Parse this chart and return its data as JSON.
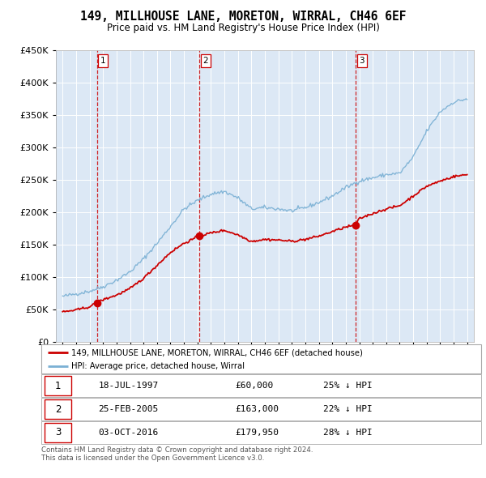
{
  "title": "149, MILLHOUSE LANE, MORETON, WIRRAL, CH46 6EF",
  "subtitle": "Price paid vs. HM Land Registry's House Price Index (HPI)",
  "legend_label_red": "149, MILLHOUSE LANE, MORETON, WIRRAL, CH46 6EF (detached house)",
  "legend_label_blue": "HPI: Average price, detached house, Wirral",
  "sales": [
    {
      "num": 1,
      "date_x": 1997.54,
      "price": 60000,
      "label": "18-JUL-1997",
      "price_str": "£60,000",
      "pct": "25% ↓ HPI"
    },
    {
      "num": 2,
      "date_x": 2005.15,
      "price": 163000,
      "label": "25-FEB-2005",
      "price_str": "£163,000",
      "pct": "22% ↓ HPI"
    },
    {
      "num": 3,
      "date_x": 2016.75,
      "price": 179950,
      "label": "03-OCT-2016",
      "price_str": "£179,950",
      "pct": "28% ↓ HPI"
    }
  ],
  "footer": "Contains HM Land Registry data © Crown copyright and database right 2024.\nThis data is licensed under the Open Government Licence v3.0.",
  "ylim": [
    0,
    450000
  ],
  "xlim": [
    1994.5,
    2025.5
  ],
  "yticks": [
    0,
    50000,
    100000,
    150000,
    200000,
    250000,
    300000,
    350000,
    400000,
    450000
  ],
  "plot_bg": "#dce8f5",
  "red_color": "#cc0000",
  "blue_color": "#7ab0d4",
  "grid_color": "#ffffff",
  "hpi_base_x": [
    1995,
    1996,
    1997,
    1998,
    1999,
    2000,
    2001,
    2002,
    2003,
    2004,
    2005,
    2006,
    2007,
    2008,
    2009,
    2010,
    2011,
    2012,
    2013,
    2014,
    2015,
    2016,
    2017,
    2018,
    2019,
    2020,
    2021,
    2022,
    2023,
    2024,
    2025
  ],
  "hpi_base_y": [
    70000,
    74000,
    78000,
    85000,
    95000,
    108000,
    128000,
    152000,
    178000,
    205000,
    218000,
    228000,
    232000,
    222000,
    205000,
    207000,
    205000,
    202000,
    207000,
    215000,
    225000,
    238000,
    248000,
    253000,
    258000,
    260000,
    285000,
    325000,
    355000,
    370000,
    375000
  ],
  "pp_base_x": [
    1995,
    1996,
    1997,
    1997.54,
    1998,
    1999,
    2000,
    2001,
    2002,
    2003,
    2004,
    2005.15,
    2006,
    2007,
    2008,
    2009,
    2010,
    2011,
    2012,
    2013,
    2014,
    2015,
    2016,
    2016.75,
    2017,
    2018,
    2019,
    2020,
    2021,
    2022,
    2023,
    2024,
    2025
  ],
  "pp_base_y": [
    46000,
    49000,
    54000,
    60000,
    65000,
    72000,
    82000,
    98000,
    118000,
    138000,
    152000,
    163000,
    168000,
    172000,
    165000,
    155000,
    158000,
    157000,
    155000,
    158000,
    163000,
    170000,
    177000,
    179950,
    190000,
    198000,
    205000,
    210000,
    225000,
    240000,
    248000,
    255000,
    258000
  ]
}
